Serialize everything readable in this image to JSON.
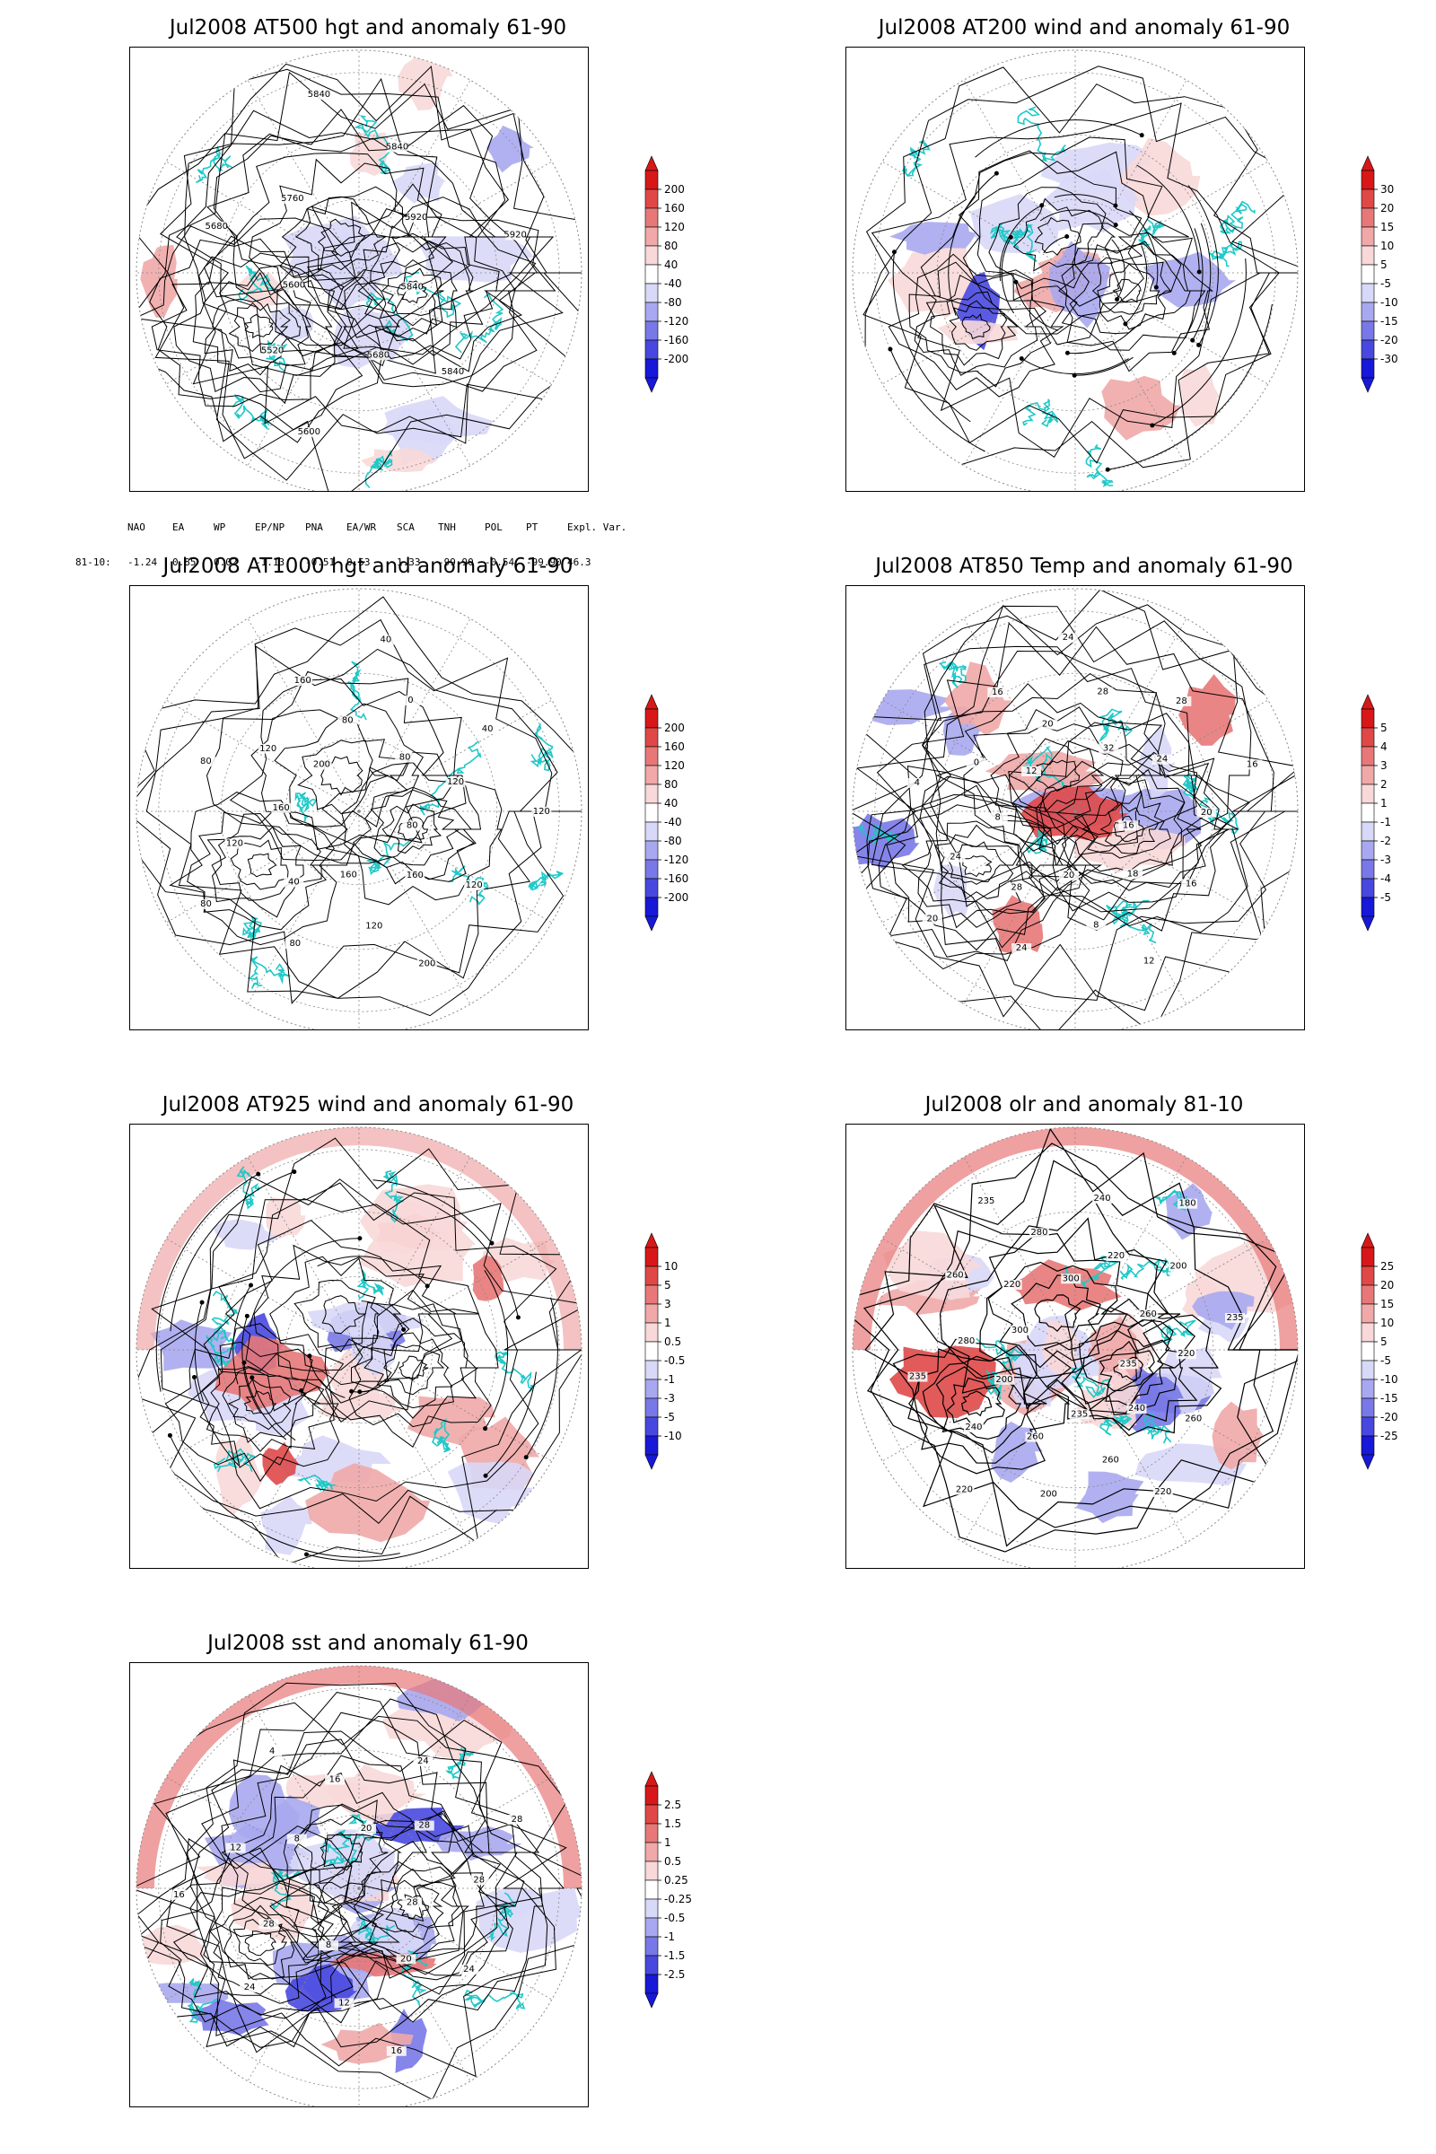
{
  "panels": [
    {
      "title": "Jul2008 AT500 hgt and anomaly 61-90",
      "colorbar": [
        "200",
        "160",
        "120",
        "80",
        "40",
        "-40",
        "-80",
        "-120",
        "-160",
        "-200"
      ],
      "contour_labels": [
        "5840",
        "5840",
        "5680",
        "5600",
        "5520",
        "5600",
        "5680",
        "5760",
        "5840",
        "5840",
        "5920",
        "5920"
      ],
      "kind": "hgt500"
    },
    {
      "title": "Jul2008 AT200 wind and anomaly 61-90",
      "colorbar": [
        "30",
        "20",
        "15",
        "10",
        "5",
        "-5",
        "-10",
        "-15",
        "-20",
        "-30"
      ],
      "contour_labels": [],
      "kind": "wind200"
    },
    {
      "title": "Jul2008 AT1000 hgt and anomaly 61-90",
      "colorbar": [
        "200",
        "160",
        "120",
        "80",
        "40",
        "-40",
        "-80",
        "-120",
        "-160",
        "-200"
      ],
      "contour_labels": [
        "80",
        "120",
        "160",
        "200",
        "120",
        "160",
        "80",
        "40",
        "80",
        "120",
        "160",
        "80",
        "120",
        "200",
        "160",
        "80",
        "40",
        "0",
        "80",
        "40",
        "120",
        "120"
      ],
      "kind": "hgt1000"
    },
    {
      "title": "Jul2008 AT850 Temp and anomaly 61-90",
      "colorbar": [
        "5",
        "4",
        "3",
        "2",
        "1",
        "-1",
        "-2",
        "-3",
        "-4",
        "-5"
      ],
      "contour_labels": [
        "16",
        "16",
        "18",
        "12",
        "8",
        "20",
        "24",
        "28",
        "20",
        "24",
        "8",
        "4",
        "0",
        "12",
        "16",
        "20",
        "24",
        "28",
        "32",
        "28",
        "24",
        "16",
        "20"
      ],
      "kind": "temp850"
    },
    {
      "title": "Jul2008 AT925 wind and anomaly 61-90",
      "colorbar": [
        "10",
        "5",
        "3",
        "1",
        "0.5",
        "-0.5",
        "-1",
        "-3",
        "-5",
        "-10"
      ],
      "contour_labels": [],
      "kind": "wind925"
    },
    {
      "title": "Jul2008 olr and anomaly 81-10",
      "colorbar": [
        "25",
        "20",
        "15",
        "10",
        "5",
        "-5",
        "-10",
        "-15",
        "-20",
        "-25"
      ],
      "contour_labels": [
        "235",
        "260",
        "240",
        "220",
        "260",
        "235",
        "200",
        "260",
        "220",
        "240",
        "200",
        "235",
        "280",
        "300",
        "260",
        "220",
        "235",
        "280",
        "300",
        "240",
        "220",
        "180",
        "200",
        "260",
        "235",
        "220"
      ],
      "kind": "olr"
    },
    {
      "title": "Jul2008 sst and anomaly 61-90",
      "colorbar": [
        "2.5",
        "1.5",
        "1",
        "0.5",
        "0.25",
        "-0.25",
        "-0.5",
        "-1",
        "-1.5",
        "-2.5"
      ],
      "contour_labels": [
        "28",
        "24",
        "20",
        "16",
        "12",
        "8",
        "24",
        "28",
        "16",
        "12",
        "8",
        "4",
        "16",
        "20",
        "24",
        "28",
        "28",
        "28"
      ],
      "kind": "sst"
    }
  ],
  "teleconnections": {
    "headers": [
      "NAO",
      "EA",
      "WP",
      "EP/NP",
      "PNA",
      "EA/WR",
      "SCA",
      "TNH",
      "POL",
      "PT",
      "Expl. Var."
    ],
    "row_label": "81-10:",
    "values": [
      "-1.24",
      "0.85",
      "0.02",
      "-1.13",
      "-0.51",
      "0.53",
      "1.33",
      "-99.90",
      "-0.54",
      "-99.90",
      "46.3"
    ]
  },
  "colors": {
    "coastline": "#20c8c8",
    "contour": "#000000",
    "anom_pos": [
      "#f8d8d8",
      "#f0a8a8",
      "#e87878",
      "#e04848",
      "#d81818"
    ],
    "anom_neg": [
      "#d8d8f8",
      "#a8a8f0",
      "#7878e8",
      "#4848e0",
      "#1818d8"
    ]
  }
}
